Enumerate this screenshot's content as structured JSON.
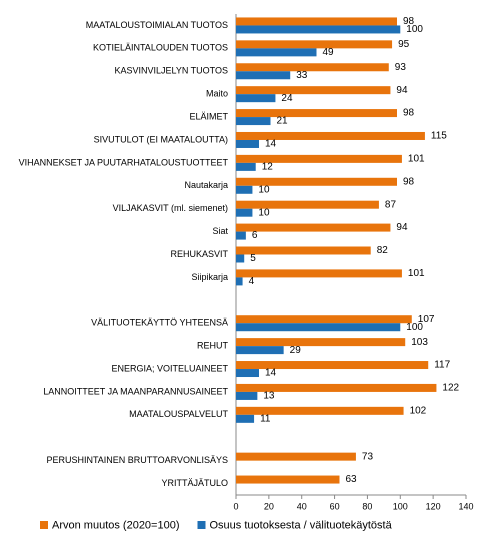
{
  "chart_data": {
    "type": "hbar",
    "categories": [
      "MAATALOUSTOIMIALAN TUOTOS",
      "KOTIELÄINTALOUDEN TUOTOS",
      "KASVINVILJELYN TUOTOS",
      "Maito",
      "ELÄIMET",
      "SIVUTULOT (EI MAATALOUTTA)",
      "VIHANNEKSET JA PUUTARHATALOUSTUOTTEET",
      "Nautakarja",
      "VILJAKASVIT (ml. siemenet)",
      "Siat",
      "REHUKASVIT",
      "Siipikarja",
      null,
      "VÄLITUOTEKÄYTTÖ YHTEENSÄ",
      "REHUT",
      "ENERGIA; VOITELUAINEET",
      "LANNOITTEET JA MAANPARANNUSAINEET",
      "MAATALOUSPALVELUT",
      null,
      "PERUSHINTAINEN BRUTTOARVONLISÄYS",
      "YRITTÄJÄTULO"
    ],
    "series": [
      {
        "name": "Arvon muutos (2020=100)",
        "color": "#e8740c",
        "values": [
          98,
          95,
          93,
          94,
          98,
          115,
          101,
          98,
          87,
          94,
          82,
          101,
          null,
          107,
          103,
          117,
          122,
          102,
          null,
          73,
          63
        ]
      },
      {
        "name": "Osuus tuotoksesta / välituotekäytöstä",
        "color": "#1f6fb4",
        "values": [
          100,
          49,
          33,
          24,
          21,
          14,
          12,
          10,
          10,
          6,
          5,
          4,
          null,
          100,
          29,
          14,
          13,
          11,
          null,
          null,
          null
        ]
      }
    ],
    "xlim": [
      0,
      140
    ],
    "xticks": [
      0,
      20,
      40,
      60,
      80,
      100,
      120,
      140
    ],
    "legend": "bottom"
  }
}
